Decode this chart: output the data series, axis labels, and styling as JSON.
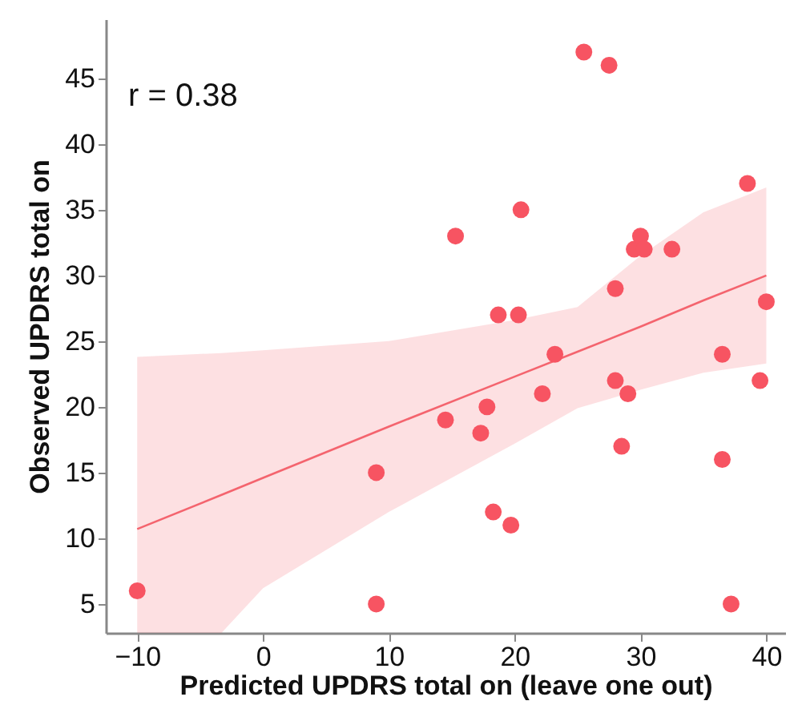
{
  "chart_data": {
    "type": "scatter",
    "xlabel": "Predicted UPDRS total on (leave one out)",
    "ylabel": "Observed UPDRS total on",
    "annotations": [
      "r = 0.38"
    ],
    "xlim": [
      -12.5,
      41.5
    ],
    "ylim": [
      2.8,
      49.5
    ],
    "xticks": [
      -10,
      0,
      10,
      20,
      30,
      40
    ],
    "yticks": [
      5,
      10,
      15,
      20,
      25,
      30,
      35,
      40,
      45
    ],
    "grid": false,
    "series": [
      {
        "type": "line",
        "color": "#f4646e",
        "x": [
          -10,
          -3.3,
          0,
          10,
          20,
          25,
          30,
          35,
          40
        ],
        "values": [
          10.7,
          13.3,
          14.6,
          18.5,
          22.3,
          24.2,
          26.1,
          28.1,
          30
        ],
        "lower": [
          2.8,
          2.8,
          6.2,
          12,
          17.2,
          19.9,
          21.3,
          22.6,
          23.3
        ],
        "upper": [
          23.8,
          24.1,
          24.3,
          25,
          26.6,
          27.6,
          31.5,
          34.8,
          36.7
        ]
      },
      {
        "marker": "circle",
        "color": "#f75462",
        "x": [
          -10,
          9,
          9,
          14.5,
          15.3,
          17.3,
          17.8,
          18.3,
          18.7,
          19.7,
          20.3,
          20.5,
          22.2,
          23.2,
          25.5,
          27.5,
          28,
          28,
          28.5,
          29,
          29.5,
          30,
          30.3,
          32.5,
          36.5,
          36.5,
          37.2,
          38.5,
          39.5,
          40
        ],
        "values": [
          6,
          5,
          15,
          19,
          33,
          18,
          20,
          12,
          27,
          11,
          27,
          35,
          21,
          24,
          47,
          46,
          29,
          22,
          17,
          21,
          32,
          33,
          32,
          32,
          24,
          16,
          5,
          37,
          22,
          28
        ]
      }
    ]
  }
}
